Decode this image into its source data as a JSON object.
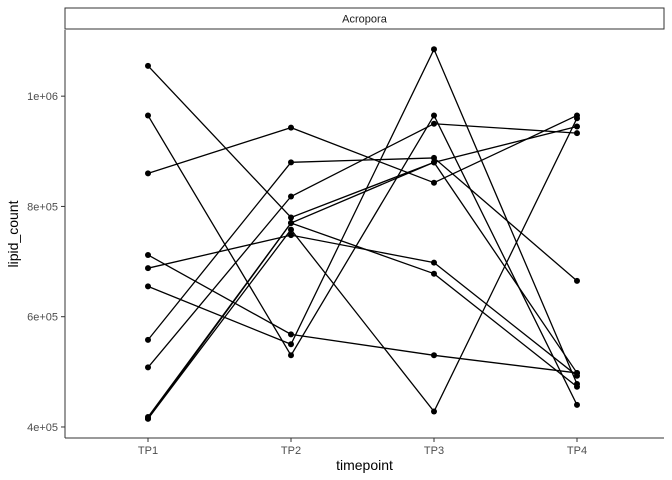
{
  "chart_data": {
    "type": "line",
    "facet_label": "Acropora",
    "xlabel": "timepoint",
    "ylabel": "lipid_count",
    "categories": [
      "TP1",
      "TP2",
      "TP3",
      "TP4"
    ],
    "y_ticks": [
      400000,
      600000,
      800000,
      1000000
    ],
    "y_tick_labels": [
      "4e+05",
      "6e+05",
      "8e+05",
      "1e+06"
    ],
    "ylim": [
      380000,
      1120000
    ],
    "grid": false,
    "colors": {
      "line": "#000000",
      "point": "#000000",
      "axis": "#333333",
      "strip_fill": "#ffffff"
    },
    "series": [
      {
        "values": [
          1055000,
          780000,
          880000,
          945000
        ]
      },
      {
        "values": [
          965000,
          530000,
          965000,
          440000
        ]
      },
      {
        "values": [
          860000,
          943000,
          843000,
          965000
        ]
      },
      {
        "values": [
          712000,
          568000,
          530000,
          498000
        ]
      },
      {
        "values": [
          688000,
          748000,
          698000,
          493000
        ]
      },
      {
        "values": [
          655000,
          550000,
          1085000,
          478000
        ]
      },
      {
        "values": [
          558000,
          880000,
          888000,
          665000
        ]
      },
      {
        "values": [
          508000,
          818000,
          950000,
          933000
        ]
      },
      {
        "values": [
          418000,
          770000,
          678000,
          473000
        ]
      },
      {
        "values": [
          415000,
          758000,
          428000,
          960000
        ]
      },
      {
        "values": [
          415000,
          770000,
          880000,
          498000
        ]
      }
    ]
  }
}
